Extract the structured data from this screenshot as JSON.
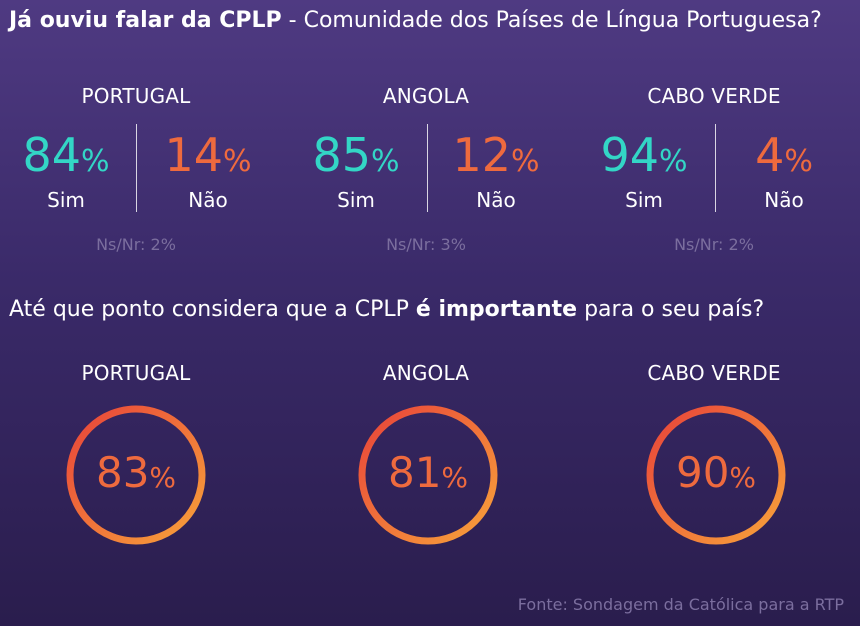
{
  "question1": {
    "bold": "Já ouviu falar da CPLP",
    "rest": " - Comunidade dos Países de Língua Portuguesa?"
  },
  "question2": {
    "before": "Até que ponto considera que a CPLP ",
    "bold": "é importante",
    "after": " para o seu país?"
  },
  "pct_sign": "%",
  "colors": {
    "sim": "#33d6c6",
    "nao": "#ee6a3e",
    "ring_start": "#e8433a",
    "ring_end": "#f7a23a"
  },
  "chart_data": [
    {
      "type": "bar",
      "title": "Já ouviu falar da CPLP - Comunidade dos Países de Língua Portuguesa?",
      "categories": [
        "PORTUGAL",
        "ANGOLA",
        "CABO VERDE"
      ],
      "series": [
        {
          "name": "Sim",
          "values": [
            84,
            85,
            94
          ]
        },
        {
          "name": "Não",
          "values": [
            14,
            12,
            4
          ]
        },
        {
          "name": "Ns/Nr",
          "values": [
            2,
            3,
            2
          ]
        }
      ],
      "labels": {
        "sim": "Sim",
        "nao": "Não",
        "nsnr": "Ns/Nr:"
      }
    },
    {
      "type": "pie",
      "title": "Até que ponto considera que a CPLP é importante para o seu país?",
      "categories": [
        "PORTUGAL",
        "ANGOLA",
        "CABO VERDE"
      ],
      "values": [
        83,
        81,
        90
      ]
    }
  ],
  "source": "Fonte: Sondagem da Católica para a RTP"
}
